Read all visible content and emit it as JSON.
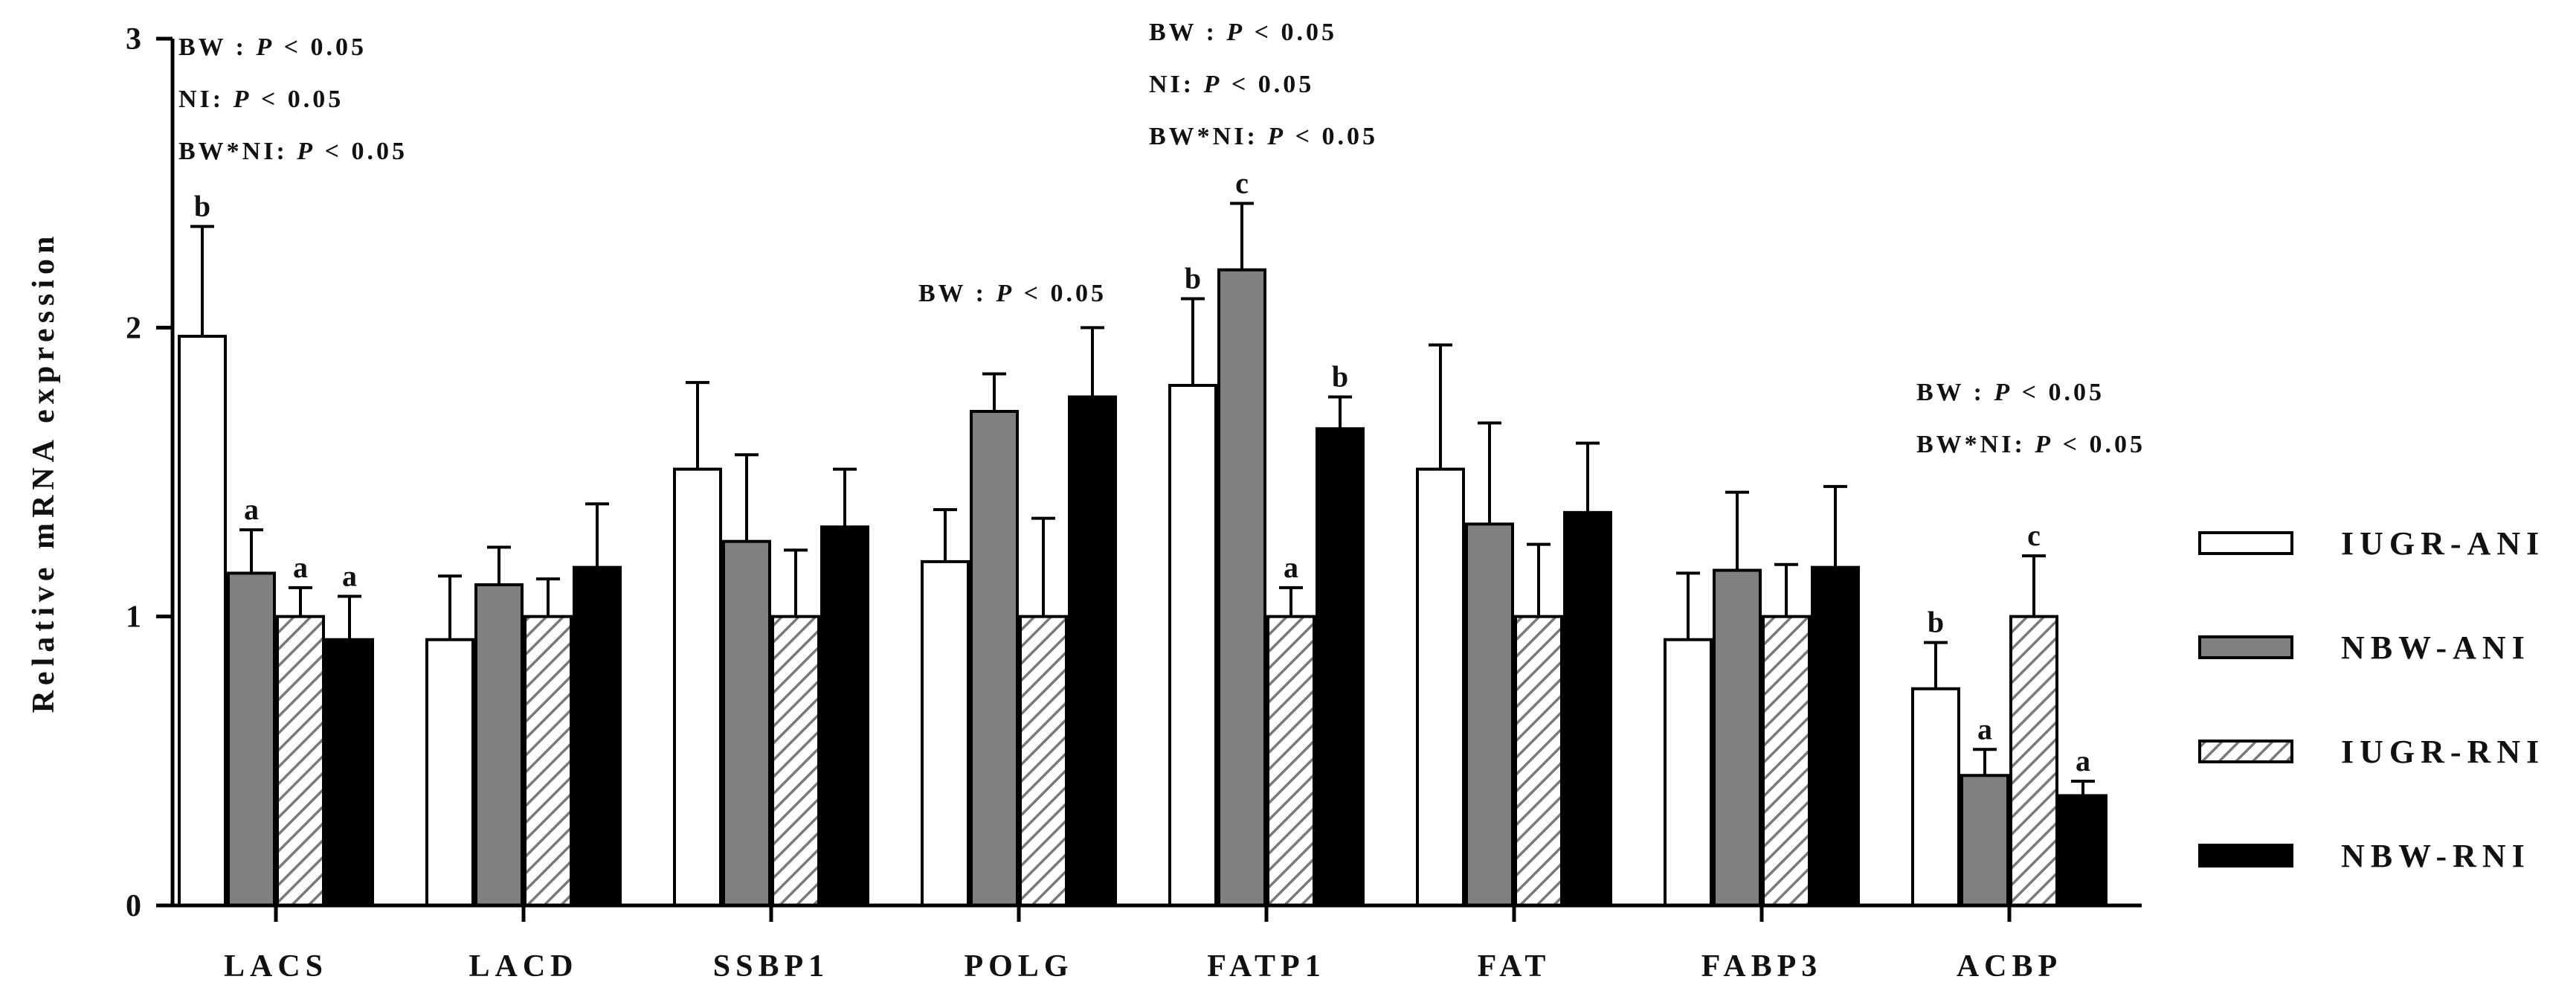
{
  "chart_data": {
    "type": "bar",
    "ylabel": "Relative mRNA expression",
    "xlabel": "",
    "ylim": [
      0,
      3
    ],
    "yticks": [
      0,
      1,
      2,
      3
    ],
    "categories": [
      "LACS",
      "LACD",
      "SSBP1",
      "POLG",
      "FATP1",
      "FAT",
      "FABP3",
      "ACBP"
    ],
    "series": [
      {
        "name": "IUGR-ANI",
        "style": "white",
        "values": [
          1.97,
          0.92,
          1.51,
          1.19,
          1.8,
          1.51,
          0.92,
          0.75
        ],
        "errors": [
          0.38,
          0.22,
          0.3,
          0.18,
          0.3,
          0.43,
          0.23,
          0.16
        ],
        "letters": [
          "b",
          "",
          "",
          "",
          "b",
          "",
          "",
          "b"
        ]
      },
      {
        "name": "NBW-ANI",
        "style": "gray",
        "values": [
          1.15,
          1.11,
          1.26,
          1.71,
          2.2,
          1.32,
          1.16,
          0.45
        ],
        "errors": [
          0.15,
          0.13,
          0.3,
          0.13,
          0.23,
          0.35,
          0.27,
          0.09
        ],
        "letters": [
          "a",
          "",
          "",
          "",
          "c",
          "",
          "",
          "a"
        ]
      },
      {
        "name": "IUGR-RNI",
        "style": "hatched",
        "values": [
          1.0,
          1.0,
          1.0,
          1.0,
          1.0,
          1.0,
          1.0,
          1.0
        ],
        "errors": [
          0.1,
          0.13,
          0.23,
          0.34,
          0.1,
          0.25,
          0.18,
          0.21
        ],
        "letters": [
          "a",
          "",
          "",
          "",
          "a",
          "",
          "",
          "c"
        ]
      },
      {
        "name": "NBW-RNI",
        "style": "black",
        "values": [
          0.92,
          1.17,
          1.31,
          1.76,
          1.65,
          1.36,
          1.17,
          0.38
        ],
        "errors": [
          0.15,
          0.22,
          0.2,
          0.24,
          0.11,
          0.24,
          0.28,
          0.05
        ],
        "letters": [
          "a",
          "",
          "",
          "",
          "b",
          "",
          "",
          "a"
        ]
      }
    ],
    "annotations": [
      {
        "category": "LACS",
        "lines": [
          [
            "BW : ",
            "P",
            " < 0.05"
          ],
          [
            "NI: ",
            "P",
            " < 0.05"
          ],
          [
            "BW*NI: ",
            "P",
            " < 0.05"
          ]
        ]
      },
      {
        "category": "POLG",
        "lines": [
          [
            "BW : ",
            "P",
            " < 0.05"
          ]
        ]
      },
      {
        "category": "FATP1",
        "lines": [
          [
            "BW : ",
            "P",
            " < 0.05"
          ],
          [
            "NI: ",
            "P",
            " < 0.05"
          ],
          [
            "BW*NI: ",
            "P",
            " < 0.05"
          ]
        ]
      },
      {
        "category": "ACBP",
        "lines": [
          [
            "BW : ",
            "P",
            " < 0.05"
          ],
          [
            "BW*NI: ",
            "P",
            " < 0.05"
          ]
        ]
      }
    ],
    "legend": {
      "position": "right",
      "entries": [
        "IUGR-ANI",
        "NBW-ANI",
        "IUGR-RNI",
        "NBW-RNI"
      ]
    },
    "colors": {
      "white": "#ffffff",
      "gray": "#808080",
      "black": "#000000",
      "hatch": "#7a7a7a",
      "stroke": "#000000"
    }
  }
}
